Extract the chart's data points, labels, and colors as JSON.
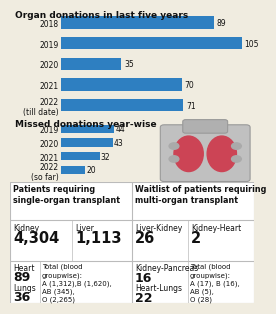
{
  "title1": "Organ donations in last five years",
  "donations": {
    "years": [
      "2018",
      "2019",
      "2020",
      "2021",
      "2022\n(till date)"
    ],
    "values": [
      89,
      105,
      35,
      70,
      71
    ],
    "max_val": 112
  },
  "title2": "Missed donations year-wise",
  "missed": {
    "years": [
      "2019",
      "2020",
      "2021",
      "2022\n(so far)"
    ],
    "values": [
      44,
      43,
      32,
      20
    ],
    "max_val": 112
  },
  "bar_color": "#2e7fc1",
  "bg_color": "#f0ece0",
  "table_bg": "#ffffff",
  "divider_color": "#bbbbbb",
  "text_dark": "#111111",
  "single_organ": {
    "title": "Patients requiring\nsingle-organ transplant",
    "note": "Total (blood\ngroupwise):\nA (1,312),B (1,620),\nAB (345),\nO (2,265)"
  },
  "multi_organ": {
    "title": "Waitlist of patients requiring\nmulti-organ transplant",
    "note": "Total (blood\ngroupwise):\nA (17), B (16),\nAB (5),\nO (28)"
  }
}
